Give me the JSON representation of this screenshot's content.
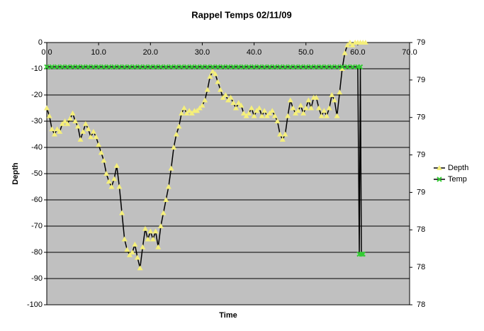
{
  "chart_data": {
    "type": "line",
    "title": "Rappel Temps 02/11/09",
    "xlabel": "Time",
    "ylabel": "Depth",
    "xlim": [
      0,
      70
    ],
    "xticks": [
      {
        "value": 0,
        "label": "0.0"
      },
      {
        "value": 10,
        "label": "10.0"
      },
      {
        "value": 20,
        "label": "20.0"
      },
      {
        "value": 30,
        "label": "30.0"
      },
      {
        "value": 40,
        "label": "40.0"
      },
      {
        "value": 50,
        "label": "50.0"
      },
      {
        "value": 60,
        "label": "60.0"
      },
      {
        "value": 70,
        "label": "70.0"
      }
    ],
    "ylim": [
      -100,
      0
    ],
    "yticks": [
      0,
      -10,
      -20,
      -30,
      -40,
      -50,
      -60,
      -70,
      -80,
      -90,
      -100
    ],
    "y2lim": [
      78,
      79.4
    ],
    "y2ticks": [
      {
        "value": 79.4,
        "label": "79"
      },
      {
        "value": 79.2,
        "label": "79"
      },
      {
        "value": 79,
        "label": "79"
      },
      {
        "value": 78.8,
        "label": "79"
      },
      {
        "value": 78.6,
        "label": "79"
      },
      {
        "value": 78.4,
        "label": "78"
      },
      {
        "value": 78.2,
        "label": "78"
      },
      {
        "value": 78,
        "label": "78"
      }
    ],
    "grid": true,
    "legend": "right",
    "series": [
      {
        "name": "Depth",
        "color": "#f5ef7a",
        "marker": "triangle",
        "x": [
          0,
          0.5,
          1,
          1.5,
          2,
          2.5,
          3,
          3.5,
          4,
          4.5,
          5,
          5.5,
          6,
          6.5,
          7,
          7.5,
          8,
          8.5,
          9,
          9.5,
          10,
          10.5,
          11,
          11.5,
          12,
          12.5,
          13,
          13.5,
          14,
          14.5,
          15,
          15.5,
          16,
          16.5,
          17,
          17.5,
          18,
          18.5,
          19,
          19.5,
          20,
          20.5,
          21,
          21.5,
          22,
          22.5,
          23,
          23.5,
          24,
          24.5,
          25,
          25.5,
          26,
          26.5,
          27,
          27.5,
          28,
          28.5,
          29,
          29.5,
          30,
          30.5,
          31,
          31.5,
          32,
          32.5,
          33,
          33.5,
          34,
          34.5,
          35,
          35.5,
          36,
          36.5,
          37,
          37.5,
          38,
          38.5,
          39,
          39.5,
          40,
          40.5,
          41,
          41.5,
          42,
          42.5,
          43,
          43.5,
          44,
          44.5,
          45,
          45.5,
          46,
          46.5,
          47,
          47.5,
          48,
          48.5,
          49,
          49.5,
          50,
          50.5,
          51,
          51.5,
          52,
          52.5,
          53,
          53.5,
          54,
          54.5,
          55,
          55.5,
          56,
          56.5,
          57,
          57.5,
          58,
          58.5,
          59,
          59.5,
          60,
          60.5,
          61,
          61.5
        ],
        "values": [
          -25,
          -28,
          -33,
          -35,
          -33,
          -34,
          -31,
          -30,
          -31,
          -29,
          -27,
          -30,
          -32,
          -37,
          -34,
          -31,
          -33,
          -36,
          -34,
          -36,
          -39,
          -42,
          -45,
          -50,
          -53,
          -55,
          -52,
          -47,
          -55,
          -65,
          -75,
          -79,
          -81,
          -80,
          -77,
          -82,
          -86,
          -78,
          -71,
          -75,
          -72,
          -75,
          -72,
          -78,
          -70,
          -65,
          -60,
          -55,
          -48,
          -40,
          -35,
          -32,
          -27,
          -25,
          -27,
          -26,
          -27,
          -26,
          -26,
          -25,
          -24,
          -22,
          -18,
          -13,
          -11,
          -12,
          -15,
          -18,
          -21,
          -20,
          -22,
          -21,
          -23,
          -25,
          -23,
          -24,
          -27,
          -28,
          -27,
          -25,
          -28,
          -26,
          -25,
          -28,
          -26,
          -28,
          -27,
          -26,
          -28,
          -30,
          -35,
          -37,
          -35,
          -28,
          -22,
          -25,
          -27,
          -26,
          -24,
          -27,
          -25,
          -22,
          -25,
          -21,
          -21,
          -25,
          -28,
          -26,
          -28,
          -25,
          -20,
          -22,
          -28,
          -19,
          -10,
          -4,
          -1,
          0,
          -1,
          0,
          0,
          0,
          0,
          0
        ]
      },
      {
        "name": "Temp",
        "color": "#33cc33",
        "marker": "x",
        "axis": "y2",
        "x": [
          0,
          1,
          2,
          3,
          4,
          5,
          6,
          7,
          8,
          9,
          10,
          11,
          12,
          13,
          14,
          15,
          16,
          17,
          18,
          19,
          20,
          21,
          22,
          23,
          24,
          25,
          26,
          27,
          28,
          29,
          30,
          31,
          32,
          33,
          34,
          35,
          36,
          37,
          38,
          39,
          40,
          41,
          42,
          43,
          44,
          45,
          46,
          47,
          48,
          49,
          50,
          51,
          52,
          53,
          54,
          55,
          56,
          57,
          58,
          59,
          60,
          60.3,
          60.5,
          60.7,
          61
        ],
        "values": [
          79.27,
          79.27,
          79.27,
          79.27,
          79.27,
          79.27,
          79.27,
          79.27,
          79.27,
          79.27,
          79.27,
          79.27,
          79.27,
          79.27,
          79.27,
          79.27,
          79.27,
          79.27,
          79.27,
          79.27,
          79.27,
          79.27,
          79.27,
          79.27,
          79.27,
          79.27,
          79.27,
          79.27,
          79.27,
          79.27,
          79.27,
          79.27,
          79.27,
          79.27,
          79.27,
          79.27,
          79.27,
          79.27,
          79.27,
          79.27,
          79.27,
          79.27,
          79.27,
          79.27,
          79.27,
          79.27,
          79.27,
          79.27,
          79.27,
          79.27,
          79.27,
          79.27,
          79.27,
          79.27,
          79.27,
          79.27,
          79.27,
          79.27,
          79.27,
          79.27,
          79.27,
          78.27,
          79.27,
          78.27,
          78.27
        ]
      }
    ]
  }
}
